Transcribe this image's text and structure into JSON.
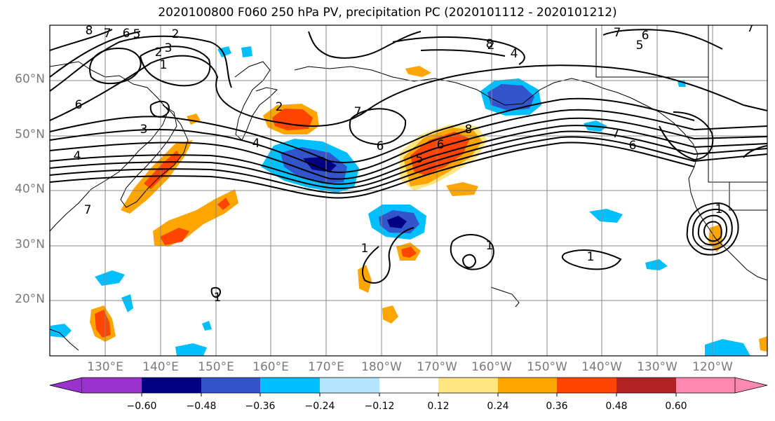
{
  "title": "2020100800 F060 250 hPa PV, precipitation PC (2020101112 - 2020101212)",
  "lat_labels": [
    "60°N",
    "50°N",
    "40°N",
    "30°N",
    "20°N"
  ],
  "lon_labels": [
    "130°E",
    "140°E",
    "150°E",
    "160°E",
    "170°E",
    "180°W",
    "170°W",
    "160°W",
    "150°W",
    "140°W",
    "130°W",
    "120°W"
  ],
  "colorbar": {
    "ticks": [
      "−0.60",
      "−0.48",
      "−0.36",
      "−0.24",
      "−0.12",
      "0.12",
      "0.24",
      "0.36",
      "0.48",
      "0.60"
    ],
    "colors": [
      "#9933cc",
      "#000080",
      "#3355cc",
      "#00bfff",
      "#b3e5ff",
      "#ffffff",
      "#ffe680",
      "#ffa500",
      "#ff4500",
      "#b22222",
      "#ff88b0"
    ]
  },
  "contour_labels": [
    "8",
    "7",
    "6",
    "5",
    "2",
    "3",
    "2",
    "1",
    "6",
    "3",
    "4",
    "4",
    "2",
    "6",
    "7",
    "6",
    "5",
    "8",
    "7",
    "6",
    "8",
    "7",
    "5",
    "1",
    "1",
    "1",
    "1",
    "7",
    "2",
    "4",
    "6",
    "1",
    "7"
  ]
}
